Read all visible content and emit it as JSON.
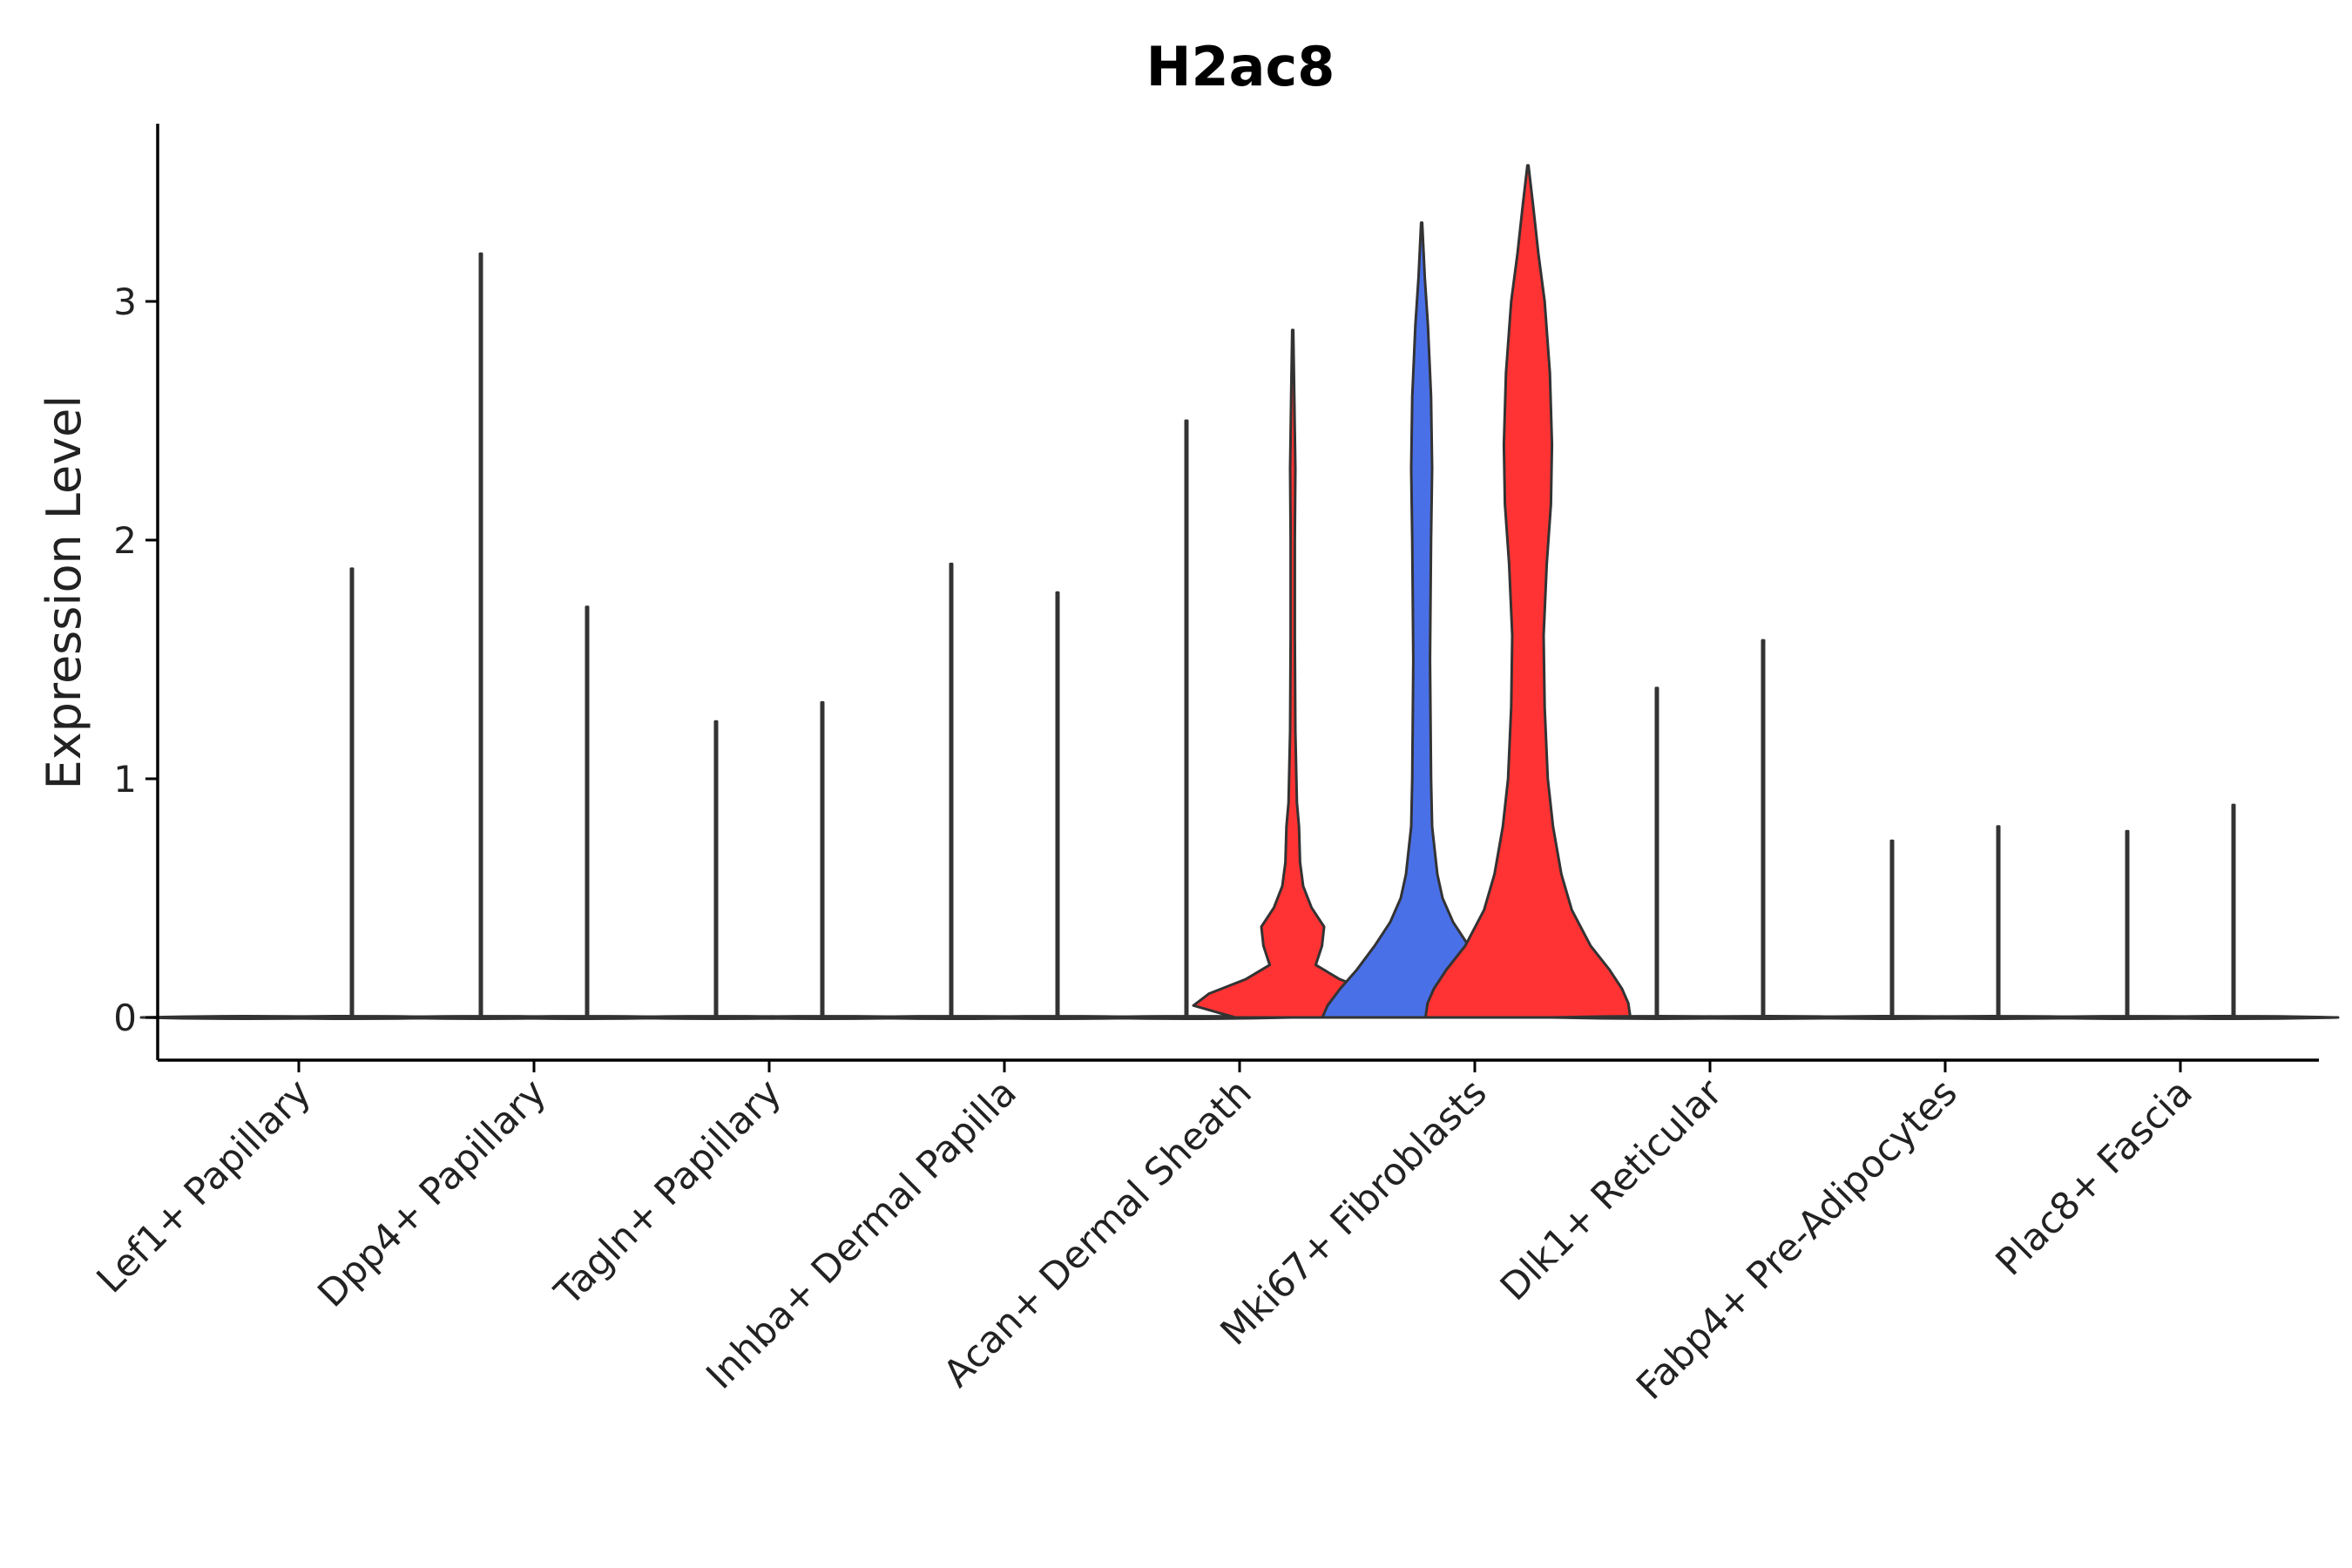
{
  "chart_data": {
    "type": "violin",
    "title": "H2ac8",
    "xlabel": "",
    "ylabel": "Expression Level",
    "ylim": [
      -0.18,
      3.75
    ],
    "yticks": [
      0,
      1,
      2,
      3
    ],
    "grid": false,
    "legend": "none",
    "colors": {
      "high": "#ff3333",
      "low": "#4a70e8",
      "flat": "#ffffff",
      "outline": "#333333"
    },
    "categories": [
      "Lef1+ Papillary",
      "Dpp4+ Papillary",
      "Tagln+ Papillary",
      "Inhba+ Dermal Papilla",
      "Acan+ Dermal Sheath",
      "Mki67+ Fibroblasts",
      "Dlk1+ Reticular",
      "Fabp4+ Pre-Adipocytes",
      "Plac8+ Fascia"
    ],
    "violins": [
      {
        "group": "Lef1+ Papillary",
        "split": "left",
        "max": 0.0,
        "fill": "flat"
      },
      {
        "group": "Lef1+ Papillary",
        "split": "right",
        "max": 1.88,
        "fill": "flat"
      },
      {
        "group": "Dpp4+ Papillary",
        "split": "left",
        "max": 3.2,
        "fill": "flat"
      },
      {
        "group": "Dpp4+ Papillary",
        "split": "right",
        "max": 1.72,
        "fill": "flat"
      },
      {
        "group": "Tagln+ Papillary",
        "split": "left",
        "max": 1.24,
        "fill": "flat"
      },
      {
        "group": "Tagln+ Papillary",
        "split": "right",
        "max": 1.32,
        "fill": "flat"
      },
      {
        "group": "Inhba+ Dermal Papilla",
        "split": "left",
        "max": 1.9,
        "fill": "flat"
      },
      {
        "group": "Inhba+ Dermal Papilla",
        "split": "right",
        "max": 1.78,
        "fill": "flat"
      },
      {
        "group": "Acan+ Dermal Sheath",
        "split": "left",
        "max": 2.5,
        "fill": "flat"
      },
      {
        "group": "Acan+ Dermal Sheath",
        "split": "right",
        "max": 2.88,
        "fill": "high",
        "profile": [
          [
            0,
            0.55
          ],
          [
            0.05,
            0.95
          ],
          [
            0.1,
            0.8
          ],
          [
            0.16,
            0.45
          ],
          [
            0.22,
            0.22
          ],
          [
            0.3,
            0.28
          ],
          [
            0.38,
            0.3
          ],
          [
            0.46,
            0.18
          ],
          [
            0.55,
            0.1
          ],
          [
            0.65,
            0.07
          ],
          [
            0.8,
            0.06
          ],
          [
            0.9,
            0.04
          ],
          [
            1.2,
            0.025
          ],
          [
            1.6,
            0.02
          ],
          [
            2.0,
            0.02
          ],
          [
            2.3,
            0.025
          ],
          [
            2.6,
            0.015
          ],
          [
            2.88,
            0.005
          ]
        ]
      },
      {
        "group": "Mki67+ Fibroblasts",
        "split": "left",
        "max": 3.33,
        "fill": "low",
        "profile": [
          [
            0,
            0.95
          ],
          [
            0.05,
            0.9
          ],
          [
            0.12,
            0.78
          ],
          [
            0.2,
            0.62
          ],
          [
            0.3,
            0.45
          ],
          [
            0.4,
            0.3
          ],
          [
            0.5,
            0.2
          ],
          [
            0.6,
            0.15
          ],
          [
            0.8,
            0.1
          ],
          [
            1.0,
            0.09
          ],
          [
            1.5,
            0.08
          ],
          [
            2.0,
            0.09
          ],
          [
            2.3,
            0.1
          ],
          [
            2.6,
            0.09
          ],
          [
            2.9,
            0.06
          ],
          [
            3.1,
            0.03
          ],
          [
            3.33,
            0.005
          ]
        ]
      },
      {
        "group": "Mki67+ Fibroblasts",
        "split": "right",
        "max": 3.57,
        "fill": "high",
        "profile": [
          [
            0,
            0.98
          ],
          [
            0.06,
            0.96
          ],
          [
            0.12,
            0.9
          ],
          [
            0.2,
            0.78
          ],
          [
            0.3,
            0.6
          ],
          [
            0.45,
            0.42
          ],
          [
            0.6,
            0.32
          ],
          [
            0.8,
            0.24
          ],
          [
            1.0,
            0.19
          ],
          [
            1.3,
            0.16
          ],
          [
            1.6,
            0.15
          ],
          [
            1.9,
            0.18
          ],
          [
            2.15,
            0.22
          ],
          [
            2.4,
            0.23
          ],
          [
            2.7,
            0.21
          ],
          [
            3.0,
            0.16
          ],
          [
            3.2,
            0.1
          ],
          [
            3.4,
            0.05
          ],
          [
            3.57,
            0.005
          ]
        ]
      },
      {
        "group": "Dlk1+ Reticular",
        "split": "left",
        "max": 1.38,
        "fill": "flat"
      },
      {
        "group": "Dlk1+ Reticular",
        "split": "right",
        "max": 1.58,
        "fill": "flat"
      },
      {
        "group": "Fabp4+ Pre-Adipocytes",
        "split": "left",
        "max": 0.74,
        "fill": "flat"
      },
      {
        "group": "Fabp4+ Pre-Adipocytes",
        "split": "right",
        "max": 0.8,
        "fill": "flat"
      },
      {
        "group": "Plac8+ Fascia",
        "split": "left",
        "max": 0.78,
        "fill": "flat"
      },
      {
        "group": "Plac8+ Fascia",
        "split": "right",
        "max": 0.89,
        "fill": "flat"
      }
    ]
  }
}
